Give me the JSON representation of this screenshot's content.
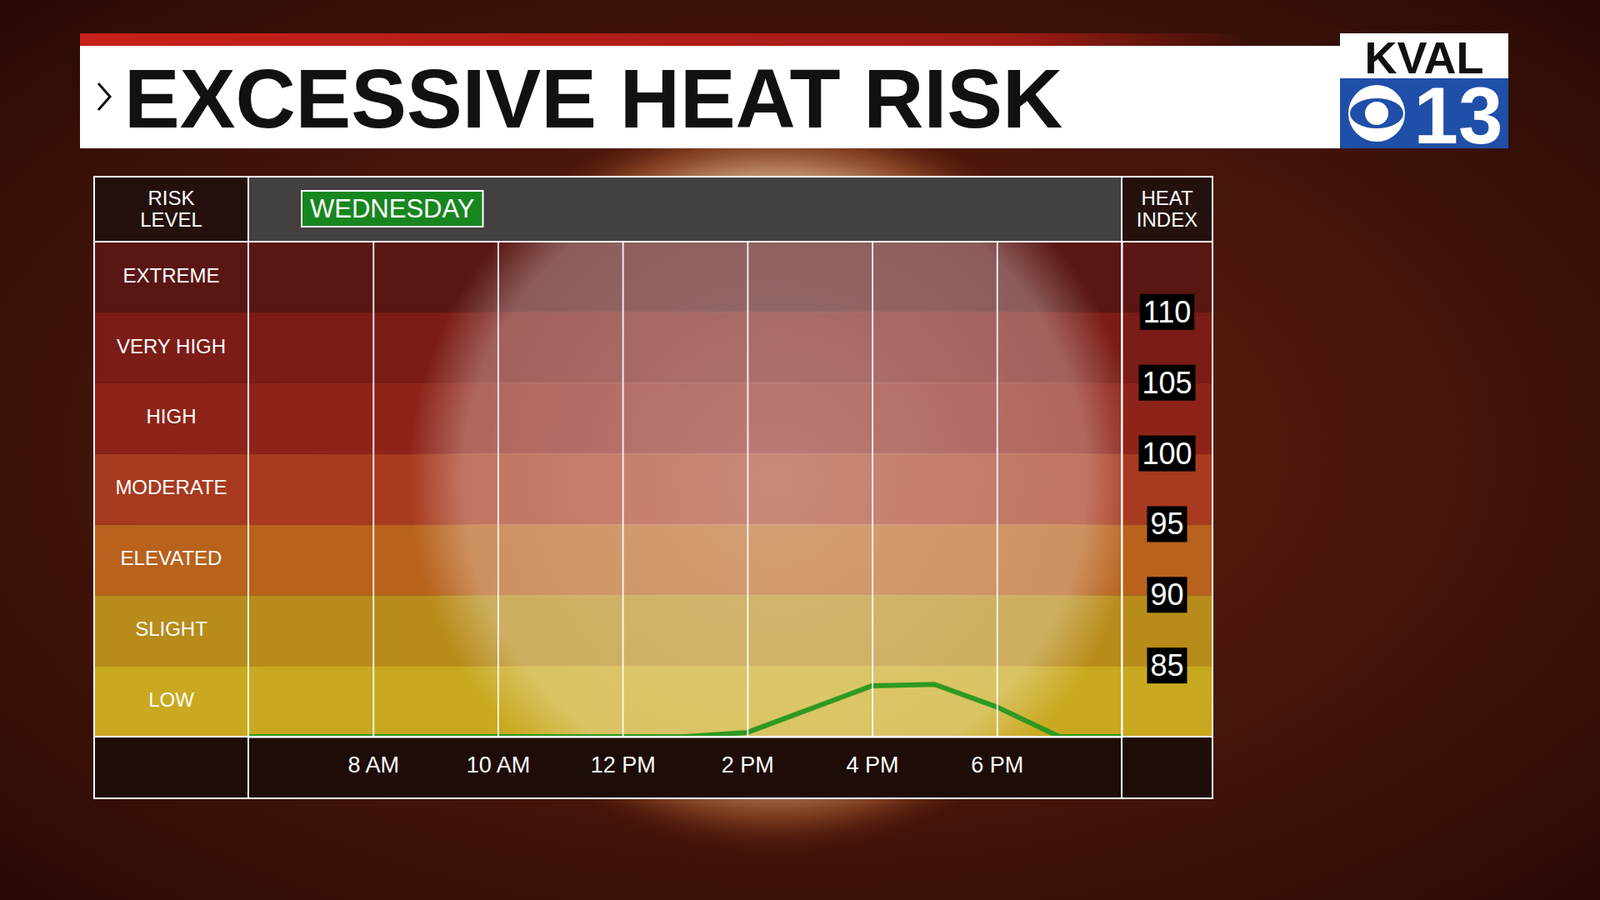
{
  "chart_data": {
    "type": "line",
    "title": "EXCESSIVE HEAT RISK",
    "subtitle": "WEDNESDAY",
    "band_title": "RISK LEVEL",
    "ylabel": "HEAT INDEX",
    "x": [
      6,
      13,
      14,
      16,
      17,
      18,
      19,
      20
    ],
    "values": [
      80,
      80,
      80.3,
      83.6,
      83.7,
      82.1,
      80,
      80
    ],
    "color": "#2e9a1f",
    "xlim": [
      6,
      20
    ],
    "xticks": [
      {
        "value": 8,
        "label": "8 AM"
      },
      {
        "value": 10,
        "label": "10 AM"
      },
      {
        "value": 12,
        "label": "12 PM"
      },
      {
        "value": 14,
        "label": "2 PM"
      },
      {
        "value": 16,
        "label": "4 PM"
      },
      {
        "value": 18,
        "label": "6 PM"
      }
    ],
    "ylim": [
      80,
      115
    ],
    "yticks": [
      85,
      90,
      95,
      100,
      105,
      110
    ],
    "grid": true,
    "bands": [
      {
        "label": "LOW",
        "range": [
          80,
          85
        ],
        "color": "#c9a91f"
      },
      {
        "label": "SLIGHT",
        "range": [
          85,
          90
        ],
        "color": "#b88c1a"
      },
      {
        "label": "ELEVATED",
        "range": [
          90,
          95
        ],
        "color": "#b8621c"
      },
      {
        "label": "MODERATE",
        "range": [
          95,
          100
        ],
        "color": "#a83a1f"
      },
      {
        "label": "HIGH",
        "range": [
          100,
          105
        ],
        "color": "#8e2419"
      },
      {
        "label": "VERY HIGH",
        "range": [
          105,
          110
        ],
        "color": "#7b1c16"
      },
      {
        "label": "EXTREME",
        "range": [
          110,
          115
        ],
        "color": "#5a1613"
      }
    ]
  },
  "logo": {
    "call_sign": "KVAL",
    "channel": "13"
  }
}
